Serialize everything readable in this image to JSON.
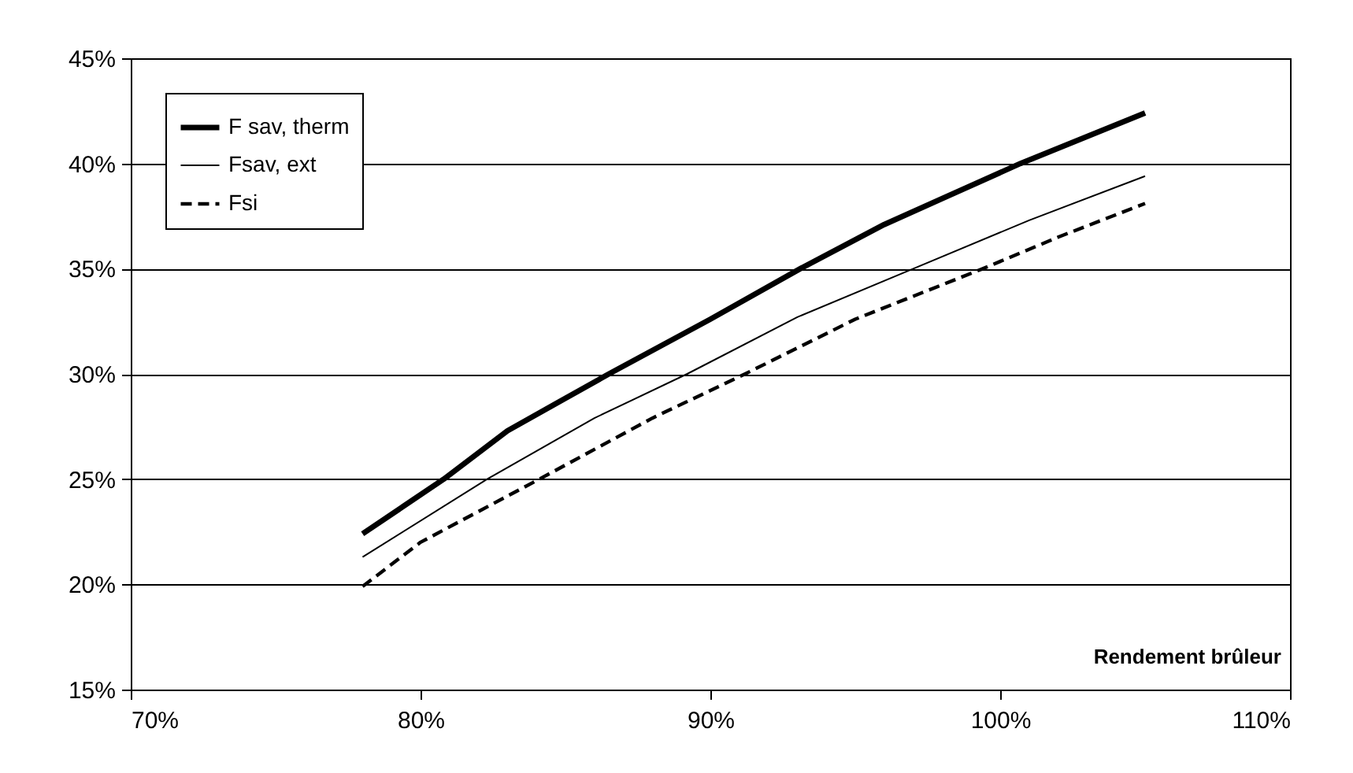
{
  "chart_data": {
    "type": "line",
    "xlabel": "Rendement brûleur",
    "xlim": [
      70,
      110
    ],
    "xticks": [
      {
        "value": 70,
        "label": "70%"
      },
      {
        "value": 80,
        "label": "80%"
      },
      {
        "value": 90,
        "label": "90%"
      },
      {
        "value": 100,
        "label": "100%"
      },
      {
        "value": 110,
        "label": "110%"
      }
    ],
    "ylim": [
      15,
      45
    ],
    "yticks": [
      {
        "value": 15,
        "label": "15%"
      },
      {
        "value": 20,
        "label": "20%"
      },
      {
        "value": 25,
        "label": "25%"
      },
      {
        "value": 30,
        "label": "30%"
      },
      {
        "value": 35,
        "label": "35%"
      },
      {
        "value": 40,
        "label": "40%"
      },
      {
        "value": 45,
        "label": "45%"
      }
    ],
    "grid": "y",
    "legend": "top left",
    "marker": "none",
    "series": [
      {
        "name": "F sav, therm",
        "color": "#000000",
        "line_style": "solid",
        "x": [
          78,
          80.8,
          83,
          86.5,
          90,
          93.1,
          96,
          100.7,
          105
        ],
        "values": [
          22.4,
          25,
          27.3,
          30,
          32.6,
          35,
          37.1,
          40,
          42.4
        ]
      },
      {
        "name": "Fsav, ext",
        "color": "#000000",
        "line_style": "solid",
        "x": [
          78,
          82.3,
          86,
          89.2,
          93,
          97,
          101,
          105
        ],
        "values": [
          21.3,
          25,
          27.9,
          30,
          32.7,
          35,
          37.3,
          39.4
        ]
      },
      {
        "name": "Fsi",
        "color": "#000000",
        "line_style": "dashed",
        "x": [
          78,
          80,
          84.1,
          88,
          91.2,
          95,
          99.4,
          102,
          105
        ],
        "values": [
          19.9,
          22,
          25,
          27.9,
          30,
          32.6,
          35,
          36.5,
          38.1
        ]
      }
    ]
  }
}
